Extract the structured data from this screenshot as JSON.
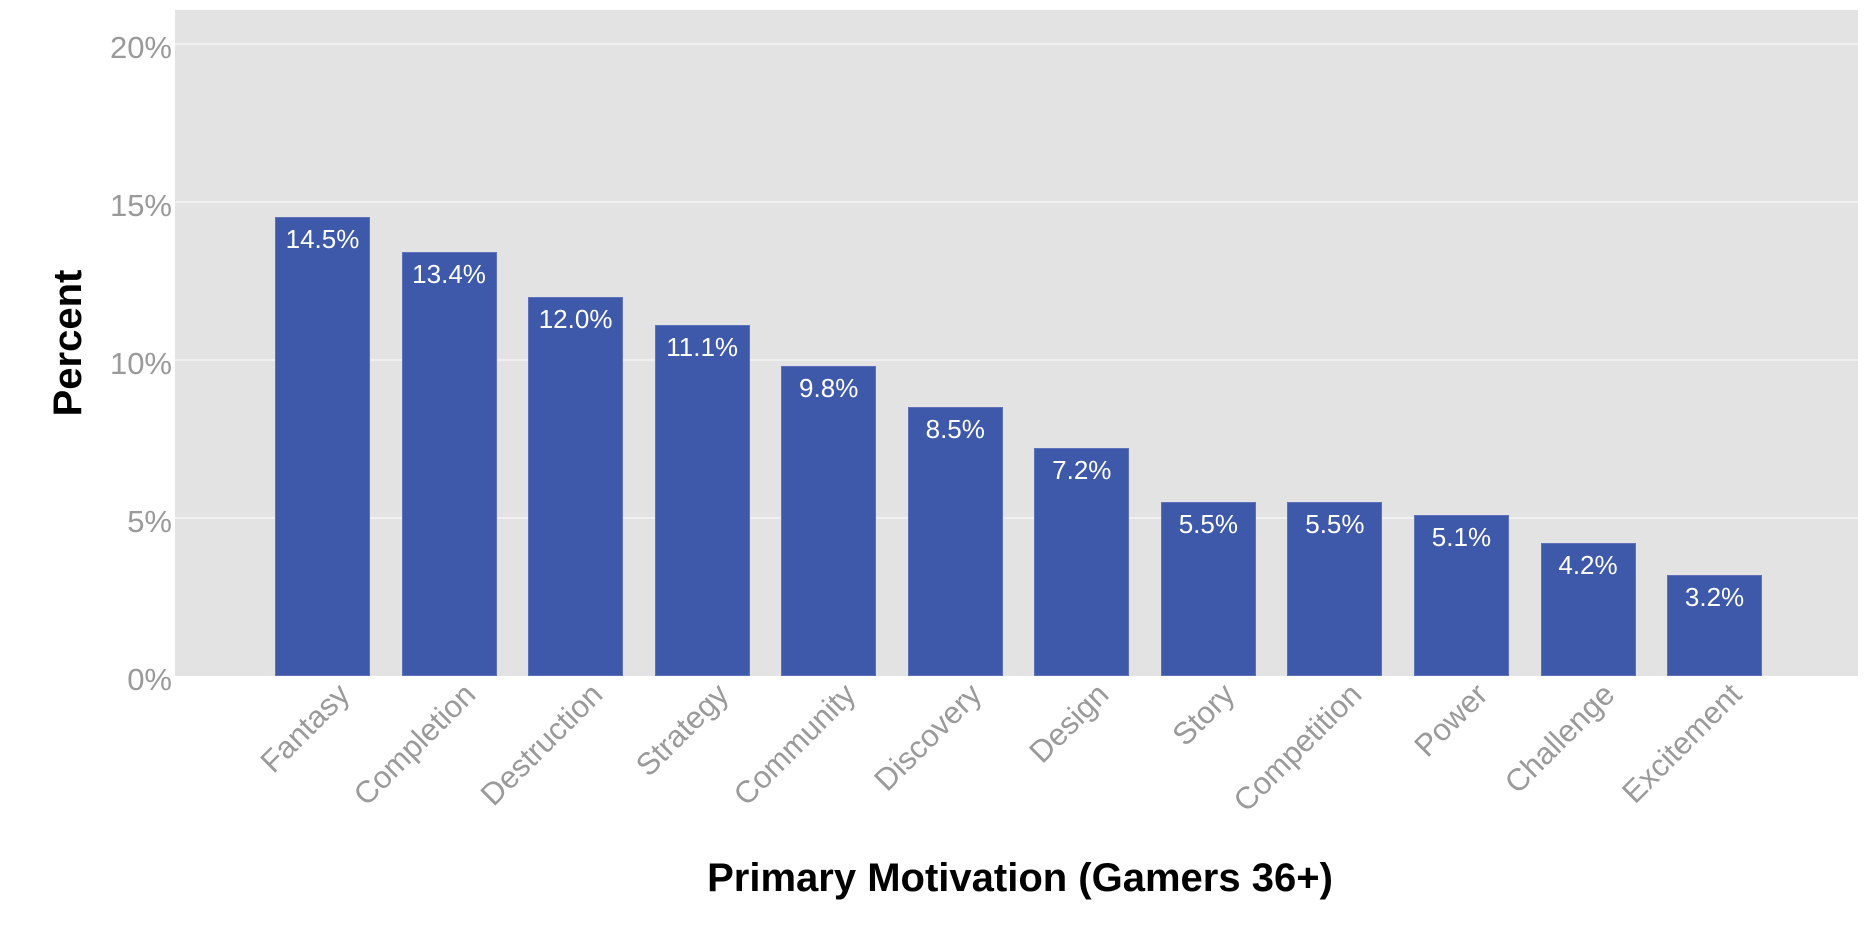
{
  "chart_data": {
    "type": "bar",
    "title": "",
    "xlabel": "Primary Motivation (Gamers 36+)",
    "ylabel": "Percent",
    "ylim": [
      0,
      21
    ],
    "yticks": [
      0,
      5,
      10,
      15,
      20
    ],
    "ytick_labels": [
      "0%",
      "5%",
      "10%",
      "15%",
      "20%"
    ],
    "grid": true,
    "legend": null,
    "categories": [
      "Fantasy",
      "Completion",
      "Destruction",
      "Strategy",
      "Community",
      "Discovery",
      "Design",
      "Story",
      "Competition",
      "Power",
      "Challenge",
      "Excitement"
    ],
    "values": [
      14.5,
      13.4,
      12.0,
      11.1,
      9.8,
      8.5,
      7.2,
      5.5,
      5.5,
      5.1,
      4.2,
      3.2
    ],
    "data_labels": [
      "14.5%",
      "13.4%",
      "12.0%",
      "11.1%",
      "9.8%",
      "8.5%",
      "7.2%",
      "5.5%",
      "5.5%",
      "5.1%",
      "4.2%",
      "3.2%"
    ],
    "colors": {
      "bar": "#3e58aa",
      "panel": "#e3e3e3",
      "grid": "#f0f0f0",
      "tick_text": "#9a9a9a",
      "title_text": "#000000",
      "bar_label_text": "#ffffff"
    }
  }
}
